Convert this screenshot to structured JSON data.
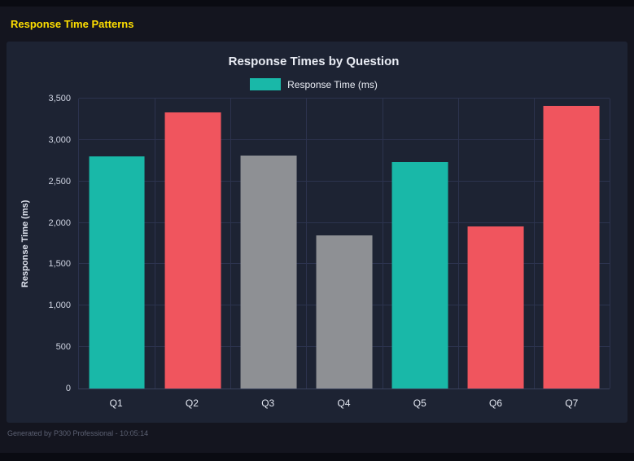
{
  "page": {
    "header_title": "Response Time Patterns",
    "footer_text": "Generated by P300 Professional - 10:05:14"
  },
  "colors": {
    "accent_yellow": "#ffdf00",
    "teal": "#19b8a8",
    "red": "#f0555e",
    "gray": "#8e9094",
    "panel_bg": "#1d2333",
    "page_bg": "#14151f",
    "grid": "#2c334e",
    "text": "#e9ecf4"
  },
  "chart_data": {
    "type": "bar",
    "title": "Response Times by Question",
    "legend": [
      {
        "label": "Response Time (ms)",
        "color": "#19b8a8"
      }
    ],
    "legend_position": "top",
    "categories": [
      "Q1",
      "Q2",
      "Q3",
      "Q4",
      "Q5",
      "Q6",
      "Q7"
    ],
    "values": [
      2800,
      3330,
      2810,
      1845,
      2735,
      1960,
      3410
    ],
    "bar_colors": [
      "#19b8a8",
      "#f0555e",
      "#8e9094",
      "#8e9094",
      "#19b8a8",
      "#f0555e",
      "#f0555e"
    ],
    "xlabel": "",
    "ylabel": "Response Time (ms)",
    "ylim": [
      0,
      3500
    ],
    "yticks": [
      0,
      500,
      1000,
      1500,
      2000,
      2500,
      3000,
      3500
    ],
    "ytick_labels": [
      "0",
      "500",
      "1,000",
      "1,500",
      "2,000",
      "2,500",
      "3,000",
      "3,500"
    ],
    "grid": true
  }
}
